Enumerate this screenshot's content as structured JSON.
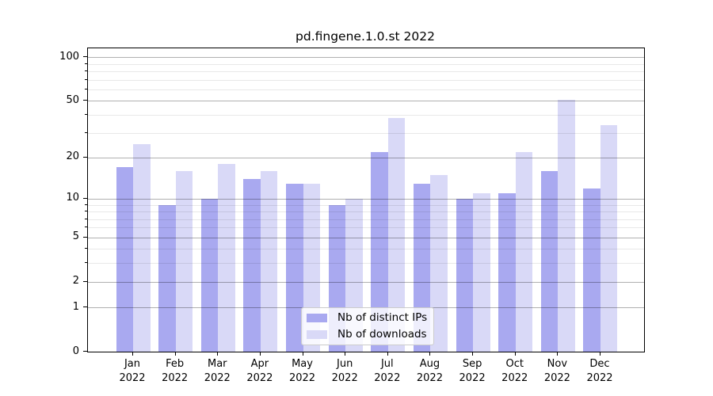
{
  "chart_data": {
    "type": "bar",
    "title": "pd.fingene.1.0.st 2022",
    "months": [
      "Jan",
      "Feb",
      "Mar",
      "Apr",
      "May",
      "Jun",
      "Jul",
      "Aug",
      "Sep",
      "Oct",
      "Nov",
      "Dec"
    ],
    "year": "2022",
    "series": [
      {
        "name": "Nb of distinct IPs",
        "color": "#a9a9f0",
        "values": [
          17,
          9,
          10,
          14,
          13,
          9,
          22,
          13,
          10,
          11,
          16,
          12
        ]
      },
      {
        "name": "Nb of downloads",
        "color": "#d9d9f7",
        "values": [
          25,
          16,
          18,
          16,
          13,
          10,
          38,
          15,
          11,
          22,
          51,
          34
        ]
      }
    ],
    "yscale": "log1p",
    "ylim": [
      0,
      116
    ],
    "major_yticks": [
      0,
      1,
      2,
      5,
      10,
      20,
      50,
      100
    ],
    "minor_yticks": [
      3,
      4,
      6,
      7,
      8,
      9,
      30,
      40,
      60,
      70,
      80,
      90
    ],
    "grid": "on",
    "legend_position": "lower-center",
    "colors": {
      "major_grid": "#b0b0b0",
      "minor_grid": "#e8e8e8",
      "spine": "#000000",
      "text": "#000000",
      "legend_border": "#cccccc",
      "legend_background": "#ffffff"
    }
  }
}
